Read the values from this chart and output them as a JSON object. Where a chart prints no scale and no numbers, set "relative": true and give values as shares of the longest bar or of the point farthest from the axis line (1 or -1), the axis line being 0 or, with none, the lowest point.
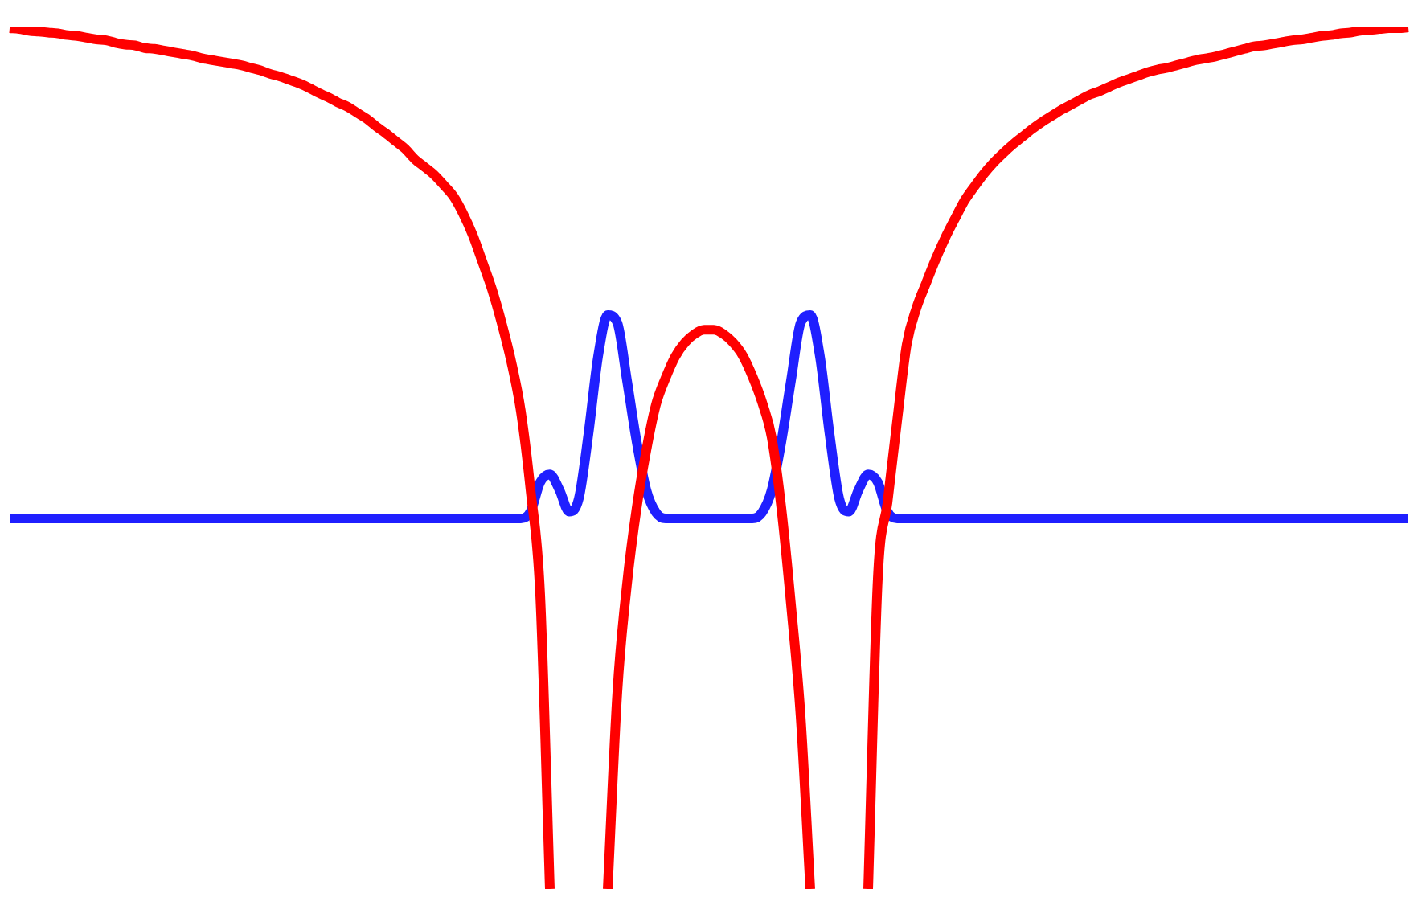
{
  "chart_data": {
    "type": "line",
    "relative": true,
    "marker": "none",
    "line_style": "solid",
    "categories": [
      null,
      null,
      null,
      null,
      null,
      null,
      null,
      null,
      null,
      null,
      null,
      null,
      null,
      null,
      null,
      null,
      null,
      null,
      null,
      null,
      null,
      null,
      null,
      null,
      null,
      null,
      null,
      null,
      null,
      null,
      null,
      null,
      null,
      null,
      null,
      null,
      null,
      null,
      null,
      null,
      null,
      null,
      null,
      null,
      null,
      null,
      null,
      null,
      null,
      null,
      null,
      null,
      null,
      null,
      null,
      null,
      null,
      null,
      null,
      null,
      null,
      null,
      null,
      null,
      null,
      null,
      null,
      null,
      null,
      null,
      null,
      null,
      null,
      null,
      null,
      null,
      null,
      null,
      null,
      null,
      null,
      null,
      null,
      null,
      null,
      null,
      null,
      null,
      null,
      null,
      null,
      null,
      null,
      null,
      null,
      null,
      null,
      null,
      null,
      null,
      null,
      null,
      null,
      null,
      null,
      null,
      null,
      null,
      null,
      null,
      null,
      null,
      null,
      null,
      null,
      null,
      null,
      null,
      null,
      null,
      null,
      null,
      null,
      null,
      null,
      null,
      null,
      null,
      null,
      null,
      null,
      null,
      null,
      null,
      null,
      null,
      null,
      null,
      null,
      null,
      null,
      null,
      null,
      null,
      null,
      null
    ],
    "series": [
      {
        "color": "#ff0000",
        "values": [
          0.999,
          0.998,
          0.996,
          0.995,
          0.994,
          0.993,
          0.991,
          0.99,
          0.988,
          0.986,
          0.985,
          0.982,
          0.98,
          0.979,
          0.976,
          0.975,
          0.973,
          0.971,
          0.969,
          0.967,
          0.964,
          0.962,
          0.96,
          0.958,
          0.956,
          0.953,
          0.95,
          0.946,
          0.943,
          0.939,
          0.935,
          0.93,
          0.924,
          0.919,
          0.913,
          0.908,
          0.901,
          0.894,
          0.885,
          0.877,
          0.868,
          0.859,
          0.847,
          0.838,
          0.829,
          0.817,
          0.804,
          0.784,
          0.759,
          0.728,
          0.696,
          0.657,
          0.612,
          0.554,
          0.463,
          0.341,
          0,
          null,
          null,
          null,
          null,
          null,
          0,
          0.229,
          0.354,
          0.442,
          0.509,
          0.562,
          0.593,
          0.618,
          0.634,
          0.644,
          0.649,
          0.649,
          0.644,
          0.634,
          0.619,
          0.595,
          0.565,
          0.524,
          0.442,
          0.33,
          0.2,
          0,
          null,
          null,
          null,
          null,
          null,
          0,
          0.36,
          0.448,
          0.543,
          0.632,
          0.674,
          0.703,
          0.731,
          0.756,
          0.778,
          0.799,
          0.815,
          0.83,
          0.843,
          0.854,
          0.864,
          0.873,
          0.882,
          0.89,
          0.897,
          0.904,
          0.91,
          0.916,
          0.922,
          0.926,
          0.931,
          0.936,
          0.94,
          0.944,
          0.948,
          0.951,
          0.953,
          0.956,
          0.959,
          0.962,
          0.964,
          0.966,
          0.969,
          0.972,
          0.975,
          0.978,
          0.979,
          0.981,
          0.983,
          0.985,
          0.986,
          0.988,
          0.99,
          0.991,
          0.993,
          0.994,
          0.996,
          0.997,
          0.998,
          0.999,
          0.999,
          1
        ]
      },
      {
        "color": "#1f1fff",
        "values": [
          0.43,
          0.43,
          0.43,
          0.43,
          0.43,
          0.43,
          0.43,
          0.43,
          0.43,
          0.43,
          0.43,
          0.43,
          0.43,
          0.43,
          0.43,
          0.43,
          0.43,
          0.43,
          0.43,
          0.43,
          0.43,
          0.43,
          0.43,
          0.43,
          0.43,
          0.43,
          0.43,
          0.43,
          0.43,
          0.43,
          0.43,
          0.43,
          0.43,
          0.43,
          0.43,
          0.43,
          0.43,
          0.43,
          0.43,
          0.43,
          0.43,
          0.43,
          0.43,
          0.43,
          0.43,
          0.43,
          0.43,
          0.43,
          0.43,
          0.43,
          0.43,
          0.43,
          0.43,
          0.43,
          0.438,
          0.472,
          0.481,
          0.463,
          0.438,
          0.453,
          0.528,
          0.618,
          0.666,
          0.657,
          0.59,
          0.519,
          0.463,
          0.437,
          0.43,
          0.43,
          0.43,
          0.43,
          0.43,
          0.43,
          0.43,
          0.43,
          0.43,
          0.43,
          0.437,
          0.463,
          0.519,
          0.59,
          0.657,
          0.666,
          0.618,
          0.528,
          0.453,
          0.438,
          0.463,
          0.481,
          0.472,
          0.438,
          0.43,
          0.43,
          0.43,
          0.43,
          0.43,
          0.43,
          0.43,
          0.43,
          0.43,
          0.43,
          0.43,
          0.43,
          0.43,
          0.43,
          0.43,
          0.43,
          0.43,
          0.43,
          0.43,
          0.43,
          0.43,
          0.43,
          0.43,
          0.43,
          0.43,
          0.43,
          0.43,
          0.43,
          0.43,
          0.43,
          0.43,
          0.43,
          0.43,
          0.43,
          0.43,
          0.43,
          0.43,
          0.43,
          0.43,
          0.43,
          0.43,
          0.43,
          0.43,
          0.43,
          0.43,
          0.43,
          0.43,
          0.43,
          0.43,
          0.43,
          0.43,
          0.43,
          0.43,
          0.43
        ]
      }
    ]
  }
}
